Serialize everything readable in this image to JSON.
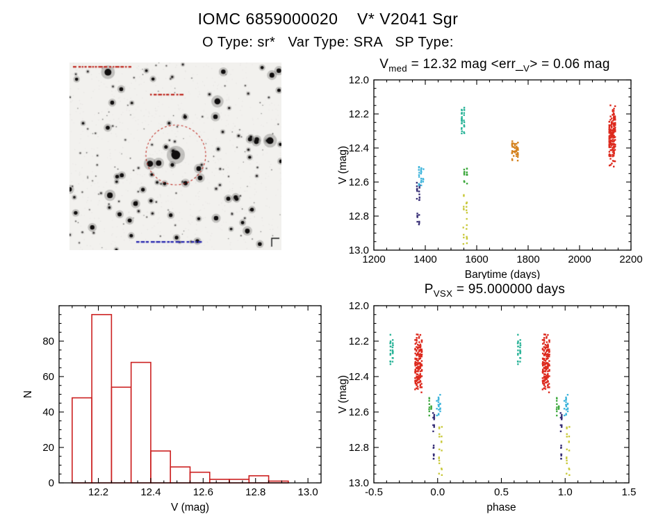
{
  "page": {
    "title": "IOMC 6859000020    V* V2041 Sgr",
    "subtitle": "O Type: sr*   Var Type: SRA   SP Type:"
  },
  "colors": {
    "red": "#dd2a1e",
    "orange": "#d4821f",
    "yellow": "#c9c93c",
    "green": "#3fa93f",
    "teal": "#2cb499",
    "cyan": "#3fb5dc",
    "navy": "#393077",
    "axis": "#000000"
  },
  "finding_chart": {
    "target_circle_color": "#c03028",
    "top_annotation_color": "#c03028",
    "center_annotation_color": "#c03028",
    "bottom_annotation_color": "#2a2ab0"
  },
  "chart_data": [
    {
      "id": "light_curve",
      "type": "scatter",
      "title_parts": [
        [
          "t",
          "V"
        ],
        [
          "s",
          "med"
        ],
        [
          "t",
          " = 12.32 mag <err_"
        ],
        [
          "s",
          "V"
        ],
        [
          "t",
          "> = 0.06 mag"
        ]
      ],
      "xlabel": "Barytime (days)",
      "ylabel": "V (mag)",
      "xlim": [
        1200,
        2200
      ],
      "ylim": [
        12.0,
        13.0
      ],
      "y_inverted": true,
      "xticks": [
        1200,
        1400,
        1600,
        1800,
        2000,
        2200
      ],
      "xtick_labels": [
        "1200",
        "1400",
        "1600",
        "1800",
        "2000",
        "2200"
      ],
      "yticks": [
        12.0,
        12.2,
        12.4,
        12.6,
        12.8,
        13.0
      ],
      "ytick_labels": [
        "12.0",
        "12.2",
        "12.4",
        "12.6",
        "12.8",
        "13.0"
      ],
      "xminor": 4,
      "yminor": 4,
      "clusters": [
        {
          "color": "navy",
          "x": [
            1368,
            1377
          ],
          "y": [
            12.6,
            12.73
          ],
          "n": 16,
          "columns": 2
        },
        {
          "color": "navy",
          "x": [
            1369,
            1376
          ],
          "y": [
            12.78,
            12.87
          ],
          "n": 9,
          "columns": 2
        },
        {
          "color": "cyan",
          "x": [
            1376,
            1392
          ],
          "y": [
            12.51,
            12.62
          ],
          "n": 22,
          "columns": 3
        },
        {
          "color": "teal",
          "x": [
            1542,
            1551
          ],
          "y": [
            12.16,
            12.33
          ],
          "n": 30,
          "columns": 2
        },
        {
          "color": "green",
          "x": [
            1552,
            1562
          ],
          "y": [
            12.52,
            12.62
          ],
          "n": 16,
          "columns": 2
        },
        {
          "color": "yellow",
          "x": [
            1549,
            1561
          ],
          "y": [
            12.67,
            12.97
          ],
          "n": 22,
          "columns": 2
        },
        {
          "color": "orange",
          "x": [
            1738,
            1760
          ],
          "y": [
            12.36,
            12.48
          ],
          "n": 42,
          "columns": 5
        },
        {
          "color": "red",
          "x": [
            2116,
            2138
          ],
          "y": [
            12.14,
            12.52
          ],
          "n": 190,
          "columns": 6,
          "bias": "center"
        }
      ]
    },
    {
      "id": "histogram",
      "type": "bar",
      "xlabel": "V (mag)",
      "ylabel": "N",
      "xlim": [
        12.05,
        13.05
      ],
      "ylim": [
        0,
        100
      ],
      "y_inverted": false,
      "bar_color": "#cc2020",
      "bin_start": 12.1,
      "bin_width": 0.075,
      "values": [
        48,
        95,
        54,
        68,
        18,
        9,
        6,
        2,
        2,
        4,
        1
      ],
      "xticks": [
        12.2,
        12.4,
        12.6,
        12.8,
        13.0
      ],
      "xtick_labels": [
        "12.2",
        "12.4",
        "12.6",
        "12.8",
        "13.0"
      ],
      "yticks": [
        0,
        20,
        40,
        60,
        80
      ],
      "ytick_labels": [
        "0",
        "20",
        "40",
        "60",
        "80"
      ],
      "xminor": 4,
      "yminor": 4
    },
    {
      "id": "phase_plot",
      "type": "scatter",
      "title_parts": [
        [
          "t",
          "P"
        ],
        [
          "s",
          "VSX"
        ],
        [
          "t",
          " = 95.000000 days"
        ]
      ],
      "xlabel": "phase",
      "ylabel": "V (mag)",
      "xlim": [
        -0.5,
        1.5
      ],
      "ylim": [
        12.0,
        13.0
      ],
      "y_inverted": true,
      "repeat_dx": 1.0,
      "xticks": [
        -0.5,
        0.0,
        0.5,
        1.0,
        1.5
      ],
      "xtick_labels": [
        "-0.5",
        "0.0",
        "0.5",
        "1.0",
        "1.5"
      ],
      "yticks": [
        12.0,
        12.2,
        12.4,
        12.6,
        12.8,
        13.0
      ],
      "ytick_labels": [
        "12.0",
        "12.2",
        "12.4",
        "12.6",
        "12.8",
        "13.0"
      ],
      "xminor": 5,
      "yminor": 4,
      "clusters": [
        {
          "color": "teal",
          "x": [
            -0.37,
            -0.352
          ],
          "y": [
            12.16,
            12.33
          ],
          "n": 26,
          "columns": 2
        },
        {
          "color": "red",
          "x": [
            -0.175,
            -0.125
          ],
          "y": [
            12.14,
            12.52
          ],
          "n": 170,
          "columns": 6,
          "bias": "center"
        },
        {
          "color": "green",
          "x": [
            -0.065,
            -0.05
          ],
          "y": [
            12.52,
            12.62
          ],
          "n": 12,
          "columns": 2
        },
        {
          "color": "navy",
          "x": [
            -0.035,
            -0.027
          ],
          "y": [
            12.6,
            12.73
          ],
          "n": 13,
          "columns": 2
        },
        {
          "color": "navy",
          "x": [
            -0.034,
            -0.028
          ],
          "y": [
            12.78,
            12.87
          ],
          "n": 8,
          "columns": 1
        },
        {
          "color": "cyan",
          "x": [
            -0.005,
            0.02
          ],
          "y": [
            12.5,
            12.62
          ],
          "n": 20,
          "columns": 3
        },
        {
          "color": "yellow",
          "x": [
            0.012,
            0.032
          ],
          "y": [
            12.68,
            12.97
          ],
          "n": 18,
          "columns": 2
        }
      ]
    }
  ]
}
